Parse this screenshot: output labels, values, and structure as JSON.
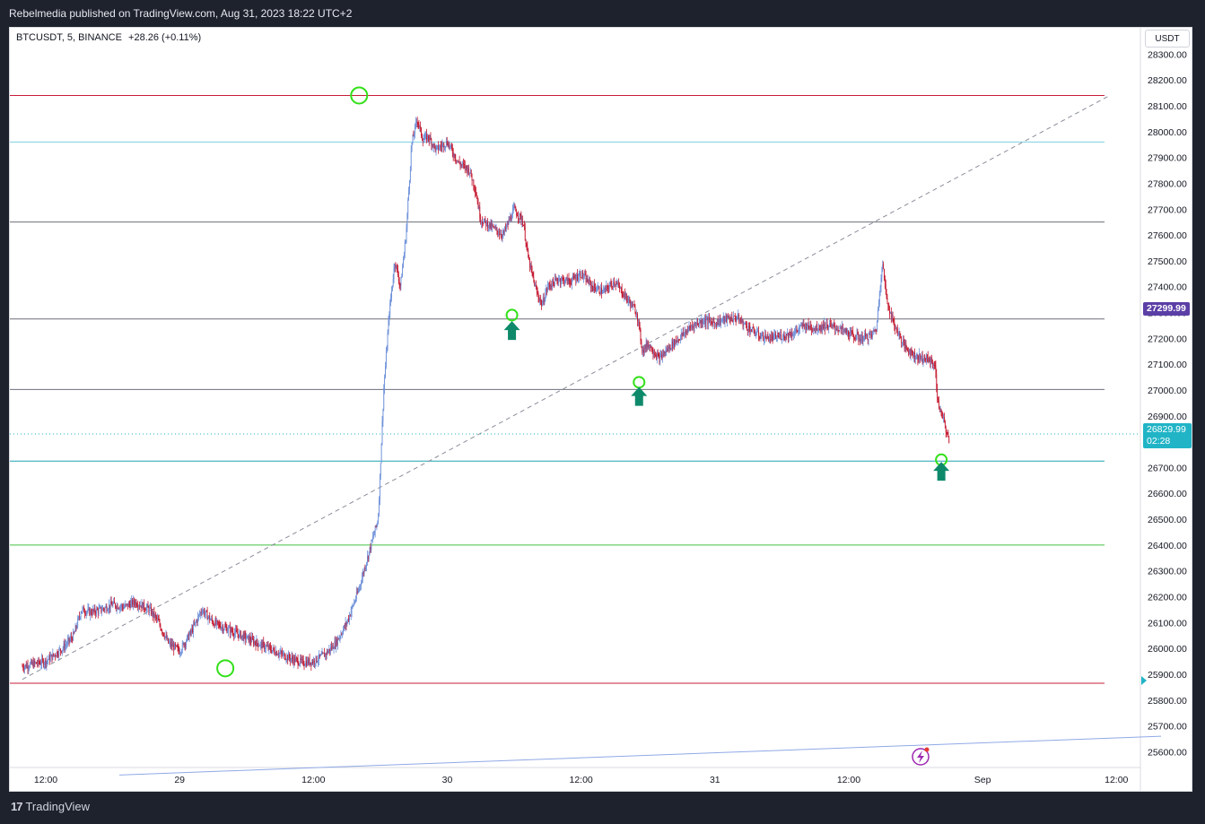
{
  "header": {
    "publisher": "Rebelmedia published on TradingView.com, Aug 31, 2023 18:22 UTC+2"
  },
  "legend": {
    "symbol": "BTCUSDT, 5, BINANCE",
    "change": "+28.26 (+0.11%)"
  },
  "currency_button": "USDT",
  "price_tags": {
    "alert_price": "27299.99",
    "last_price": "26829.99",
    "countdown": "02:28"
  },
  "footer": {
    "logo_text": "TradingView"
  },
  "colors": {
    "up": "#6a8ed8",
    "down": "#c4142b",
    "resistance": "#c71d3a",
    "fib_light": "#7dd0e0",
    "level_gray": "#6b6f7a",
    "teal": "#1fa3b2",
    "green": "#40c040",
    "arrow": "#0e8a6b",
    "circle": "#33e01a"
  },
  "chart_data": {
    "type": "candlestick",
    "symbol": "BTCUSDT",
    "interval": "5",
    "exchange": "BINANCE",
    "ylim": [
      25510,
      28310
    ],
    "y_ticks": [
      "28300.00",
      "28200.00",
      "28100.00",
      "28000.00",
      "27900.00",
      "27800.00",
      "27700.00",
      "27600.00",
      "27500.00",
      "27400.00",
      "27300.00",
      "27200.00",
      "27100.00",
      "27000.00",
      "26900.00",
      "26800.00",
      "26700.00",
      "26600.00",
      "26500.00",
      "26400.00",
      "26300.00",
      "26200.00",
      "26100.00",
      "26000.00",
      "25900.00",
      "25800.00",
      "25700.00",
      "25600.00"
    ],
    "x_ticks": [
      {
        "label": "12:00",
        "t": 0
      },
      {
        "label": "29",
        "t": 12
      },
      {
        "label": "12:00",
        "t": 24
      },
      {
        "label": "30",
        "t": 36
      },
      {
        "label": "12:00",
        "t": 48
      },
      {
        "label": "31",
        "t": 60
      },
      {
        "label": "12:00",
        "t": 72
      },
      {
        "label": "Sep",
        "t": 84
      },
      {
        "label": "12:00",
        "t": 96
      }
    ],
    "horizontal_levels": [
      {
        "price": 28140,
        "color": "resistance"
      },
      {
        "price": 27960,
        "color": "fib_light"
      },
      {
        "price": 27650,
        "color": "level_gray"
      },
      {
        "price": 27275,
        "color": "level_gray"
      },
      {
        "price": 27002,
        "color": "level_gray"
      },
      {
        "price": 26725,
        "color": "teal"
      },
      {
        "price": 26400,
        "color": "green"
      },
      {
        "price": 25865,
        "color": "resistance"
      }
    ],
    "trend_lines": [
      {
        "from": {
          "t": -2.1,
          "p": 25880
        },
        "to": {
          "t": 95.4,
          "p": 28140
        },
        "style": "dashed"
      },
      {
        "from": {
          "t": 6.6,
          "p": 25510
        },
        "to": {
          "t": 100,
          "p": 25660
        },
        "style": "solid-blue"
      }
    ],
    "markers": [
      {
        "kind": "circle",
        "t": 28.1,
        "p": 28140
      },
      {
        "kind": "circle",
        "t": 16.1,
        "p": 25923
      },
      {
        "kind": "circle",
        "t": 41.8,
        "p": 27290
      },
      {
        "kind": "circle",
        "t": 53.2,
        "p": 27030
      },
      {
        "kind": "circle",
        "t": 80.3,
        "p": 26730
      },
      {
        "kind": "arrow-up",
        "t": 41.8,
        "p": 27225
      },
      {
        "kind": "arrow-up",
        "t": 53.2,
        "p": 26970
      },
      {
        "kind": "arrow-up",
        "t": 80.3,
        "p": 26680
      }
    ],
    "close_path": [
      [
        -2.1,
        25930
      ],
      [
        0,
        25950
      ],
      [
        1.5,
        26000
      ],
      [
        2.5,
        26050
      ],
      [
        3.2,
        26150
      ],
      [
        4,
        26140
      ],
      [
        5,
        26150
      ],
      [
        6,
        26170
      ],
      [
        7,
        26160
      ],
      [
        8,
        26180
      ],
      [
        9.3,
        26150
      ],
      [
        10,
        26110
      ],
      [
        11,
        26020
      ],
      [
        12,
        25990
      ],
      [
        13,
        26060
      ],
      [
        14,
        26150
      ],
      [
        15,
        26100
      ],
      [
        16,
        26080
      ],
      [
        17,
        26060
      ],
      [
        18,
        26040
      ],
      [
        19,
        26020
      ],
      [
        20,
        26000
      ],
      [
        21,
        25980
      ],
      [
        22,
        25960
      ],
      [
        23,
        25945
      ],
      [
        24,
        25950
      ],
      [
        25,
        25975
      ],
      [
        26,
        26020
      ],
      [
        27,
        26100
      ],
      [
        28,
        26220
      ],
      [
        29.8,
        26500
      ],
      [
        30.3,
        27000
      ],
      [
        30.8,
        27300
      ],
      [
        31.3,
        27500
      ],
      [
        31.8,
        27400
      ],
      [
        32.3,
        27600
      ],
      [
        32.8,
        27950
      ],
      [
        33.3,
        28050
      ],
      [
        33.8,
        27970
      ],
      [
        34.3,
        27980
      ],
      [
        35,
        27930
      ],
      [
        36,
        27960
      ],
      [
        37,
        27880
      ],
      [
        38,
        27850
      ],
      [
        38.5,
        27780
      ],
      [
        39,
        27660
      ],
      [
        40,
        27630
      ],
      [
        41,
        27600
      ],
      [
        42,
        27700
      ],
      [
        42.8,
        27650
      ],
      [
        43.3,
        27500
      ],
      [
        44,
        27380
      ],
      [
        44.5,
        27330
      ],
      [
        45,
        27400
      ],
      [
        46,
        27430
      ],
      [
        47,
        27420
      ],
      [
        48,
        27450
      ],
      [
        49,
        27400
      ],
      [
        50,
        27380
      ],
      [
        51,
        27420
      ],
      [
        52,
        27360
      ],
      [
        53,
        27300
      ],
      [
        53.5,
        27150
      ],
      [
        54,
        27180
      ],
      [
        55,
        27120
      ],
      [
        56,
        27170
      ],
      [
        57,
        27210
      ],
      [
        58,
        27250
      ],
      [
        59,
        27270
      ],
      [
        60,
        27260
      ],
      [
        61,
        27275
      ],
      [
        62,
        27280
      ],
      [
        63,
        27240
      ],
      [
        64,
        27210
      ],
      [
        65,
        27200
      ],
      [
        66,
        27210
      ],
      [
        67,
        27220
      ],
      [
        68,
        27250
      ],
      [
        69,
        27240
      ],
      [
        70,
        27250
      ],
      [
        71,
        27240
      ],
      [
        72,
        27220
      ],
      [
        73,
        27200
      ],
      [
        74,
        27210
      ],
      [
        74.5,
        27240
      ],
      [
        75,
        27500
      ],
      [
        75.4,
        27350
      ],
      [
        76,
        27260
      ],
      [
        77,
        27170
      ],
      [
        78,
        27130
      ],
      [
        79,
        27120
      ],
      [
        79.7,
        27100
      ],
      [
        80,
        26950
      ],
      [
        80.5,
        26880
      ],
      [
        81,
        26800
      ]
    ]
  }
}
